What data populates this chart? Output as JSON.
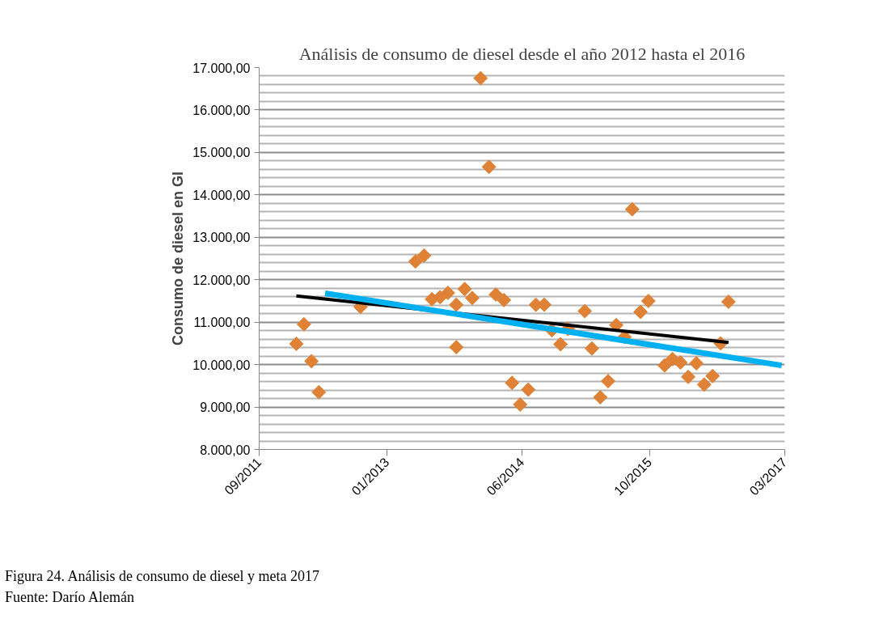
{
  "chart_data": {
    "type": "scatter",
    "title": "Análisis de consumo de diesel desde el año 2012 hasta el 2016",
    "ylabel": "Consumo de diesel en Gl",
    "annotations": [
      "Figura 24. Análisis de consumo de diesel y meta 2017",
      "Fuente: Darío Alemán"
    ],
    "xlim": [
      "2011-09-01",
      "2017-03-01"
    ],
    "xticks": [
      {
        "value": "2011-09-01",
        "label": "09/2011"
      },
      {
        "value": "2013-01-01",
        "label": "01/2013"
      },
      {
        "value": "2014-06-01",
        "label": "06/2014"
      },
      {
        "value": "2015-10-01",
        "label": "10/2015"
      },
      {
        "value": "2017-03-01",
        "label": "03/2017"
      }
    ],
    "ylim": [
      8000,
      17000
    ],
    "yticks": [
      {
        "value": 8000,
        "label": "8.000,00"
      },
      {
        "value": 9000,
        "label": "9.000,00"
      },
      {
        "value": 10000,
        "label": "10.000,00"
      },
      {
        "value": 11000,
        "label": "11.000,00"
      },
      {
        "value": 12000,
        "label": "12.000,00"
      },
      {
        "value": 13000,
        "label": "13.000,00"
      },
      {
        "value": 14000,
        "label": "14.000,00"
      },
      {
        "value": 15000,
        "label": "15.000,00"
      },
      {
        "value": 16000,
        "label": "16.000,00"
      },
      {
        "value": 17000,
        "label": "17.000,00"
      }
    ],
    "grid": "y",
    "series": [
      {
        "marker": "diamond",
        "color": "#df8236",
        "x": [
          "2012-01-21",
          "2012-02-19",
          "2012-03-19",
          "2012-04-16",
          "2012-09-22",
          "2013-04-20",
          "2013-05-23",
          "2013-06-22",
          "2013-07-23",
          "2013-08-22",
          "2013-09-23",
          "2013-09-23",
          "2013-10-25",
          "2013-11-23",
          "2013-12-25",
          "2014-01-26",
          "2014-02-21",
          "2014-03-24",
          "2014-04-24",
          "2014-05-25",
          "2014-06-25",
          "2014-07-24",
          "2014-08-25",
          "2014-09-23",
          "2014-10-26",
          "2014-11-24",
          "2015-01-27",
          "2015-02-23",
          "2015-03-27",
          "2015-04-26",
          "2015-05-27",
          "2015-06-28",
          "2015-07-27",
          "2015-08-28",
          "2015-09-27",
          "2015-11-28",
          "2015-12-28",
          "2016-01-27",
          "2016-02-26",
          "2016-03-28",
          "2016-04-27",
          "2016-05-29",
          "2016-06-29",
          "2016-07-29"
        ],
        "values": [
          10490,
          10950,
          10080,
          9350,
          11360,
          12430,
          12570,
          11540,
          11590,
          11690,
          11410,
          10410,
          11780,
          11570,
          16750,
          14660,
          11650,
          11520,
          9570,
          9060,
          9410,
          11410,
          11410,
          10810,
          10480,
          10840,
          11260,
          10380,
          9230,
          9610,
          10930,
          10650,
          13660,
          11240,
          11500,
          9980,
          10130,
          10050,
          9710,
          10030,
          9530,
          9730,
          10500,
          11480
        ]
      },
      {
        "type": "line",
        "color": "#000000",
        "x": [
          "2012-01-21",
          "2016-07-29"
        ],
        "values": [
          11620,
          10520
        ]
      },
      {
        "type": "line",
        "color": "#00b0f0",
        "x": [
          "2012-05-10",
          "2017-02-17"
        ],
        "values": [
          11680,
          9980
        ]
      }
    ]
  }
}
